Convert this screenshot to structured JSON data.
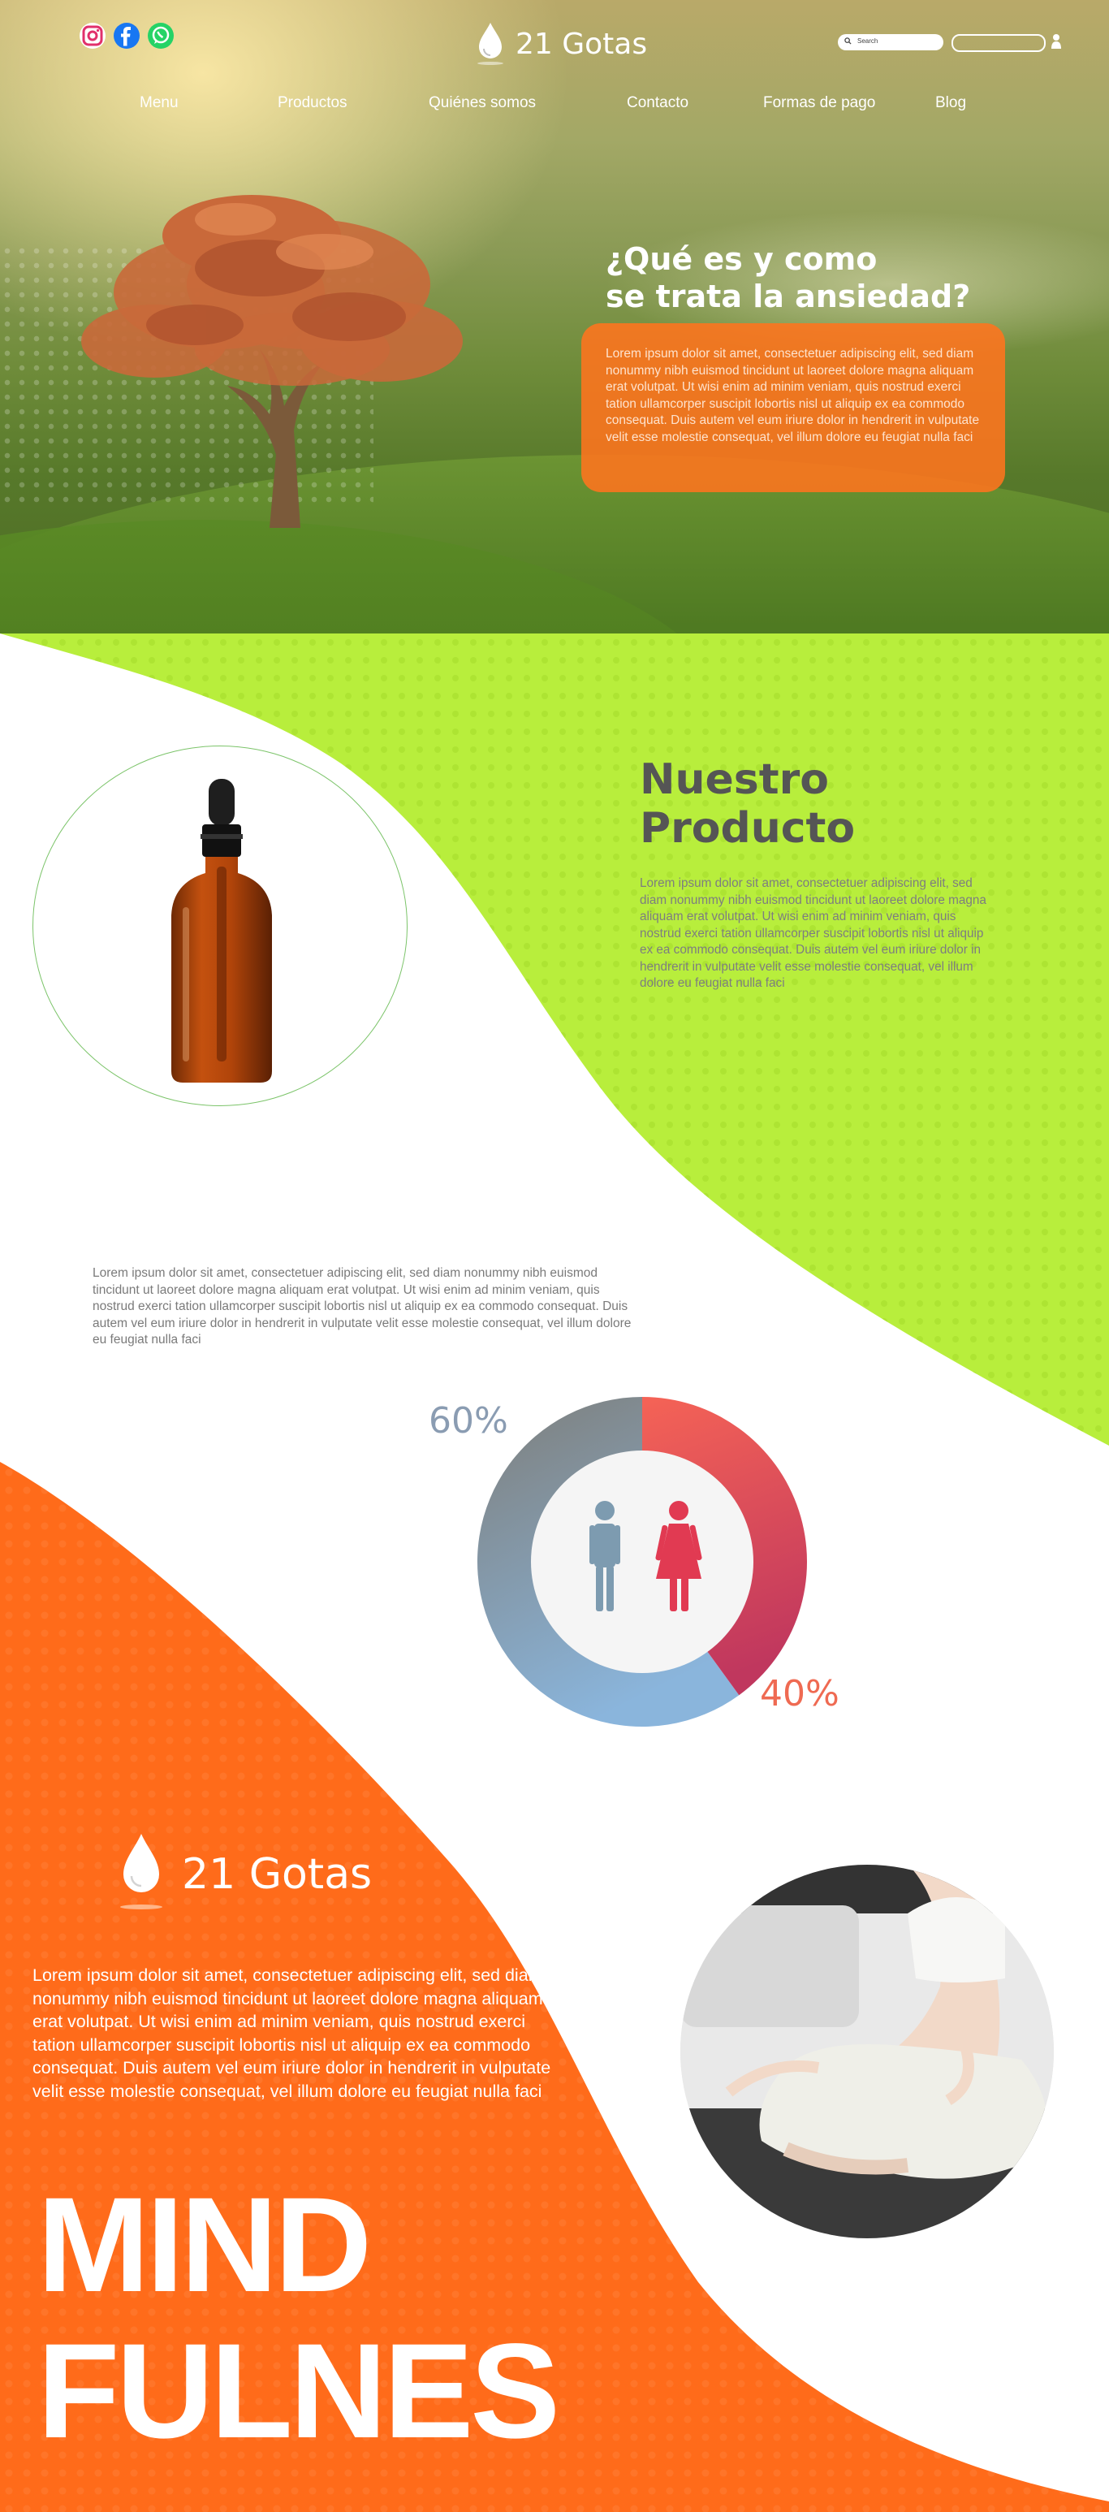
{
  "header": {
    "brand": "21 Gotas",
    "social": [
      {
        "icon": "instagram-icon",
        "color": "#e1306c"
      },
      {
        "icon": "facebook-icon",
        "color": "#1877f2"
      },
      {
        "icon": "whatsapp-icon",
        "color": "#25d366"
      }
    ],
    "search": {
      "placeholder": "Search"
    },
    "nav": [
      "Menu",
      "Productos",
      "Quiénes somos",
      "Contacto",
      "Formas de pago",
      "Blog"
    ]
  },
  "hero": {
    "title_line1": "¿Qué es y como",
    "title_line2": "se trata la ansiedad?",
    "text": "Lorem ipsum dolor sit amet, consectetuer adipiscing elit, sed diam nonummy nibh euismod tincidunt ut laoreet dolore magna aliquam erat volutpat. Ut wisi enim ad minim veniam, quis nostrud exerci tation ullamcorper suscipit lobortis nisl ut aliquip ex ea commodo consequat. Duis autem vel eum iriure dolor in hendrerit in vulputate velit esse molestie consequat, vel illum dolore eu feugiat nulla faci"
  },
  "product": {
    "title_line1": "Nuestro",
    "title_line2": "Producto",
    "text": "Lorem ipsum dolor sit amet, consectetuer adipiscing elit, sed diam nonummy nibh euismod tincidunt ut laoreet dolore magna aliquam erat volutpat. Ut wisi enim ad minim veniam, quis nostrud exerci tation ullamcorper suscipit lobortis nisl ut aliquip ex ea commodo consequat. Duis autem vel eum iriure dolor in hendrerit in vulputate velit esse molestie consequat, vel illum dolore eu feugiat nulla faci"
  },
  "info": {
    "text": "Lorem ipsum dolor sit amet, consectetuer adipiscing elit, sed diam nonummy nibh euismod tincidunt ut laoreet dolore magna aliquam erat volutpat. Ut wisi enim ad minim veniam, quis nostrud exerci tation ullamcorper suscipit lobortis nisl ut aliquip ex ea commodo consequat. Duis autem vel eum iriure dolor in hendrerit in vulputate velit esse molestie consequat, vel illum dolore eu feugiat nulla faci"
  },
  "chart_data": {
    "type": "pie",
    "style": "donut",
    "series": [
      {
        "label": "60%",
        "value": 60,
        "icon": "male-icon",
        "color_from": "#7e7e7a",
        "color_to": "#8ab5dc"
      },
      {
        "label": "40%",
        "value": 40,
        "icon": "female-icon",
        "color_from": "#f56356",
        "color_to": "#c0375e"
      }
    ]
  },
  "mindfulness": {
    "brand": "21 Gotas",
    "text": "Lorem ipsum dolor sit amet, consectetuer adipiscing elit, sed diam nonummy nibh euismod tincidunt ut laoreet dolore magna aliquam erat volutpat. Ut wisi enim ad minim veniam, quis nostrud exerci tation ullamcorper suscipit lobortis nisl ut aliquip ex ea commodo consequat. Duis autem vel eum iriure dolor in hendrerit in vulputate velit esse molestie consequat, vel illum dolore eu feugiat nulla faci",
    "headline_line1": "MIND",
    "headline_line2": "FULNES"
  },
  "colors": {
    "lime": "#b8ee3c",
    "orange": "#ff6b1a",
    "hero_box": "#ff741e",
    "text_gray": "#7d7d80",
    "title_gray": "#555555"
  }
}
